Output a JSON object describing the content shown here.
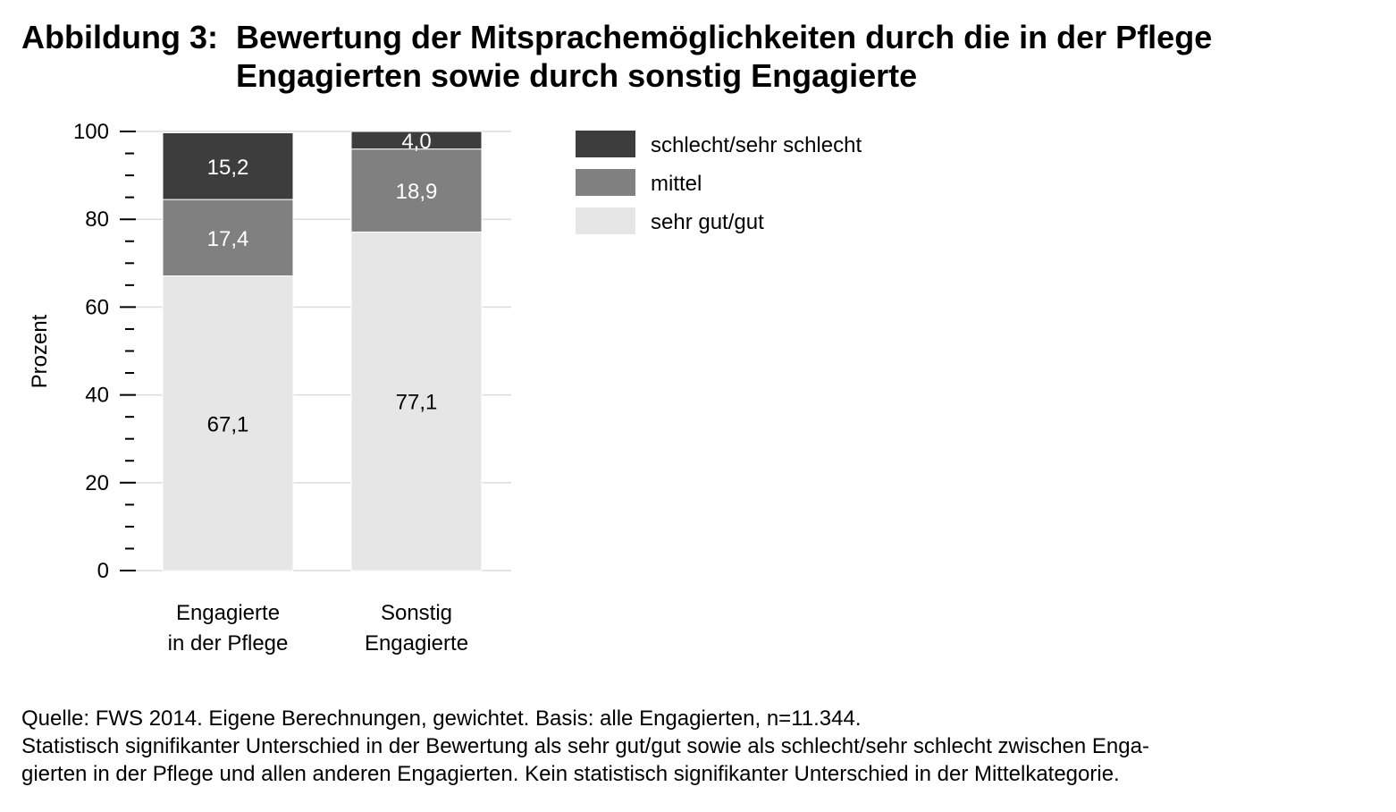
{
  "figure": {
    "label": "Abbildung 3:",
    "title_line1": "Bewertung der Mitsprachemöglichkeiten durch die in der Pflege",
    "title_line2": "Engagierten sowie durch sonstig Engagierte"
  },
  "footer": {
    "source": "Quelle: FWS 2014. Eigene Berechnungen, gewichtet. Basis: alle Engagierten, n=11.344.",
    "note_line1": "Statistisch signifikanter Unterschied in der Bewertung als sehr gut/gut sowie als schlecht/sehr schlecht zwischen Enga-",
    "note_line2": "gierten in der Pflege und allen anderen Engagierten. Kein statistisch signifikanter Unterschied in der Mittelkategorie."
  },
  "chart_data": {
    "type": "bar",
    "stacked": true,
    "ylabel": "Prozent",
    "xlabel": "",
    "ylim": [
      0,
      100
    ],
    "yticks": [
      0,
      20,
      40,
      60,
      80,
      100
    ],
    "grid": true,
    "legend_position": "top-right",
    "categories": [
      [
        "Engagierte",
        "in der Pflege"
      ],
      [
        "Sonstig",
        "Engagierte"
      ]
    ],
    "series": [
      {
        "name": "sehr gut/gut",
        "values": [
          67.1,
          77.1
        ],
        "labels": [
          "67,1",
          "77,1"
        ],
        "color": "#e6e6e6",
        "label_color": "#000000"
      },
      {
        "name": "mittel",
        "values": [
          17.4,
          18.9
        ],
        "labels": [
          "17,4",
          "18,9"
        ],
        "color": "#808080",
        "label_color": "#ffffff"
      },
      {
        "name": "schlecht/sehr schlecht",
        "values": [
          15.2,
          4.0
        ],
        "labels": [
          "15,2",
          "4,0"
        ],
        "color": "#3d3d3d",
        "label_color": "#ffffff"
      }
    ],
    "legend_order": [
      "schlecht/sehr schlecht",
      "mittel",
      "sehr gut/gut"
    ]
  }
}
